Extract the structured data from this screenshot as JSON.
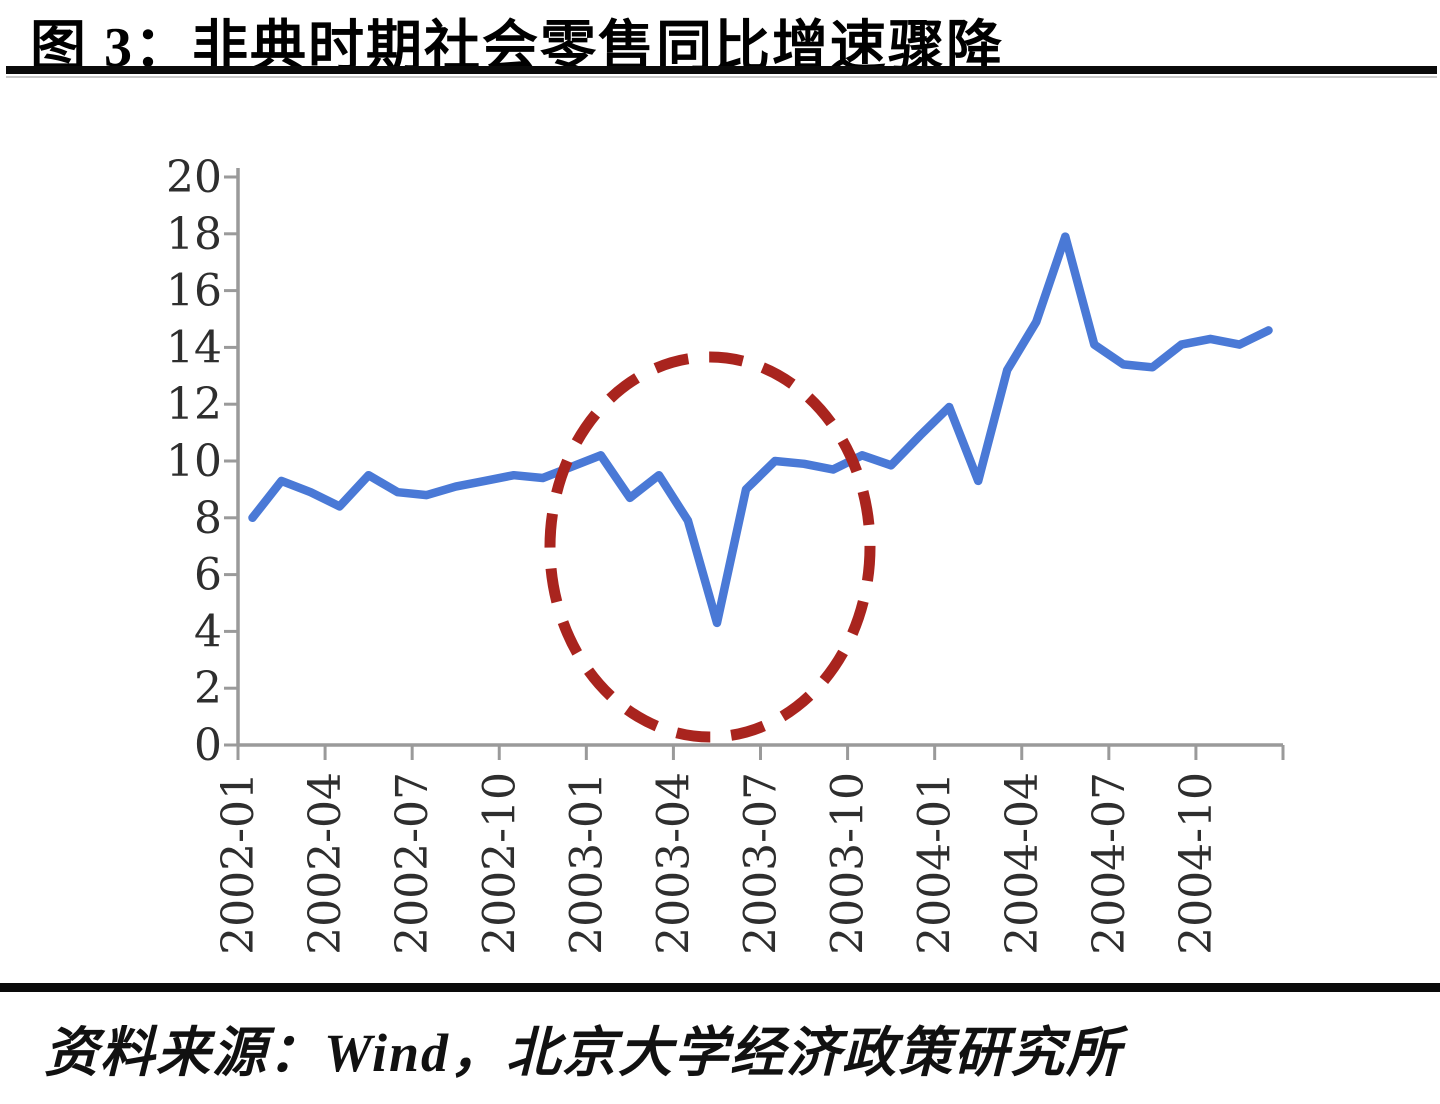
{
  "title": {
    "text": "图 3：非典时期社会零售同比增速骤降"
  },
  "source": {
    "text": "资料来源：Wind，北京大学经济政策研究所"
  },
  "colors": {
    "series_line": "#4a79d6",
    "highlight_circle": "#a9241e",
    "axis": "#9a9a9a",
    "axis_text": "#2e2e2e",
    "rule": "#0a0a0a",
    "background": "#ffffff"
  },
  "chart_data": {
    "type": "line",
    "title": "非典时期社会零售同比增速骤降",
    "x": [
      "2002-01",
      "2002-02",
      "2002-03",
      "2002-04",
      "2002-05",
      "2002-06",
      "2002-07",
      "2002-08",
      "2002-09",
      "2002-10",
      "2002-11",
      "2002-12",
      "2003-01",
      "2003-02",
      "2003-03",
      "2003-04",
      "2003-05",
      "2003-06",
      "2003-07",
      "2003-08",
      "2003-09",
      "2003-10",
      "2003-11",
      "2003-12",
      "2004-01",
      "2004-02",
      "2004-03",
      "2004-04",
      "2004-05",
      "2004-06",
      "2004-07",
      "2004-08",
      "2004-09",
      "2004-10",
      "2004-11",
      "2004-12"
    ],
    "values": [
      8.0,
      9.3,
      8.9,
      8.4,
      9.5,
      8.9,
      8.8,
      9.1,
      9.3,
      9.5,
      9.4,
      9.8,
      10.2,
      8.7,
      9.5,
      7.9,
      4.3,
      9.0,
      10.0,
      9.9,
      9.7,
      10.2,
      9.85,
      10.9,
      11.9,
      9.3,
      13.2,
      14.9,
      17.9,
      14.1,
      13.4,
      13.3,
      14.1,
      14.3,
      14.1,
      14.6
    ],
    "xlabel": "",
    "ylabel": "",
    "ylim": [
      0,
      20
    ],
    "y_ticks": [
      0,
      2,
      4,
      6,
      8,
      10,
      12,
      14,
      16,
      18,
      20
    ],
    "x_tick_labels": [
      "2002-01",
      "2002-04",
      "2002-07",
      "2002-10",
      "2003-01",
      "2003-04",
      "2003-07",
      "2003-10",
      "2004-01",
      "2004-04",
      "2004-07",
      "2004-10"
    ],
    "grid": "off",
    "legend": "none",
    "annotation": {
      "shape": "dashed-ellipse",
      "color": "#a9241e",
      "highlights_x": "2003-05",
      "highlights_value": 4.3
    }
  }
}
